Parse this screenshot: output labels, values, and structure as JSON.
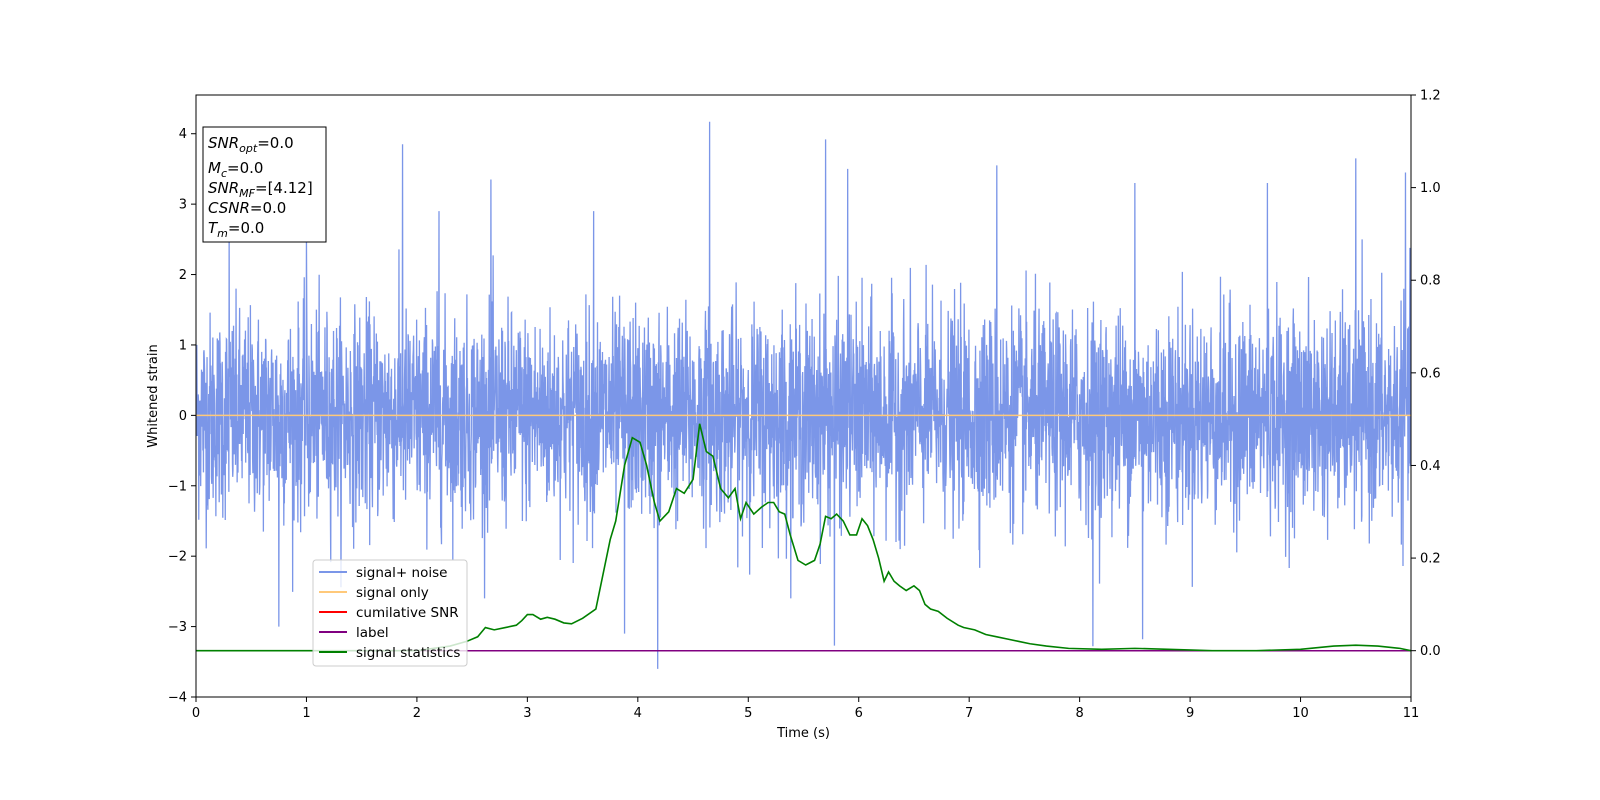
{
  "chart_data": {
    "type": "line",
    "xlabel": "Time (s)",
    "ylabel": "Whitened strain",
    "xlim": [
      0,
      11
    ],
    "ylim": [
      -4,
      4.55
    ],
    "y2lim": [
      -0.1,
      1.2
    ],
    "x_ticks": [
      "0",
      "1",
      "2",
      "3",
      "4",
      "5",
      "6",
      "7",
      "8",
      "9",
      "10",
      "11"
    ],
    "y_ticks": [
      "−4",
      "−3",
      "−2",
      "−1",
      "0",
      "1",
      "2",
      "3",
      "4"
    ],
    "y2_ticks": [
      "0.0",
      "0.2",
      "0.4",
      "0.6",
      "0.8",
      "1.0",
      "1.2"
    ],
    "info_box": {
      "snr_opt": {
        "name": "SNR",
        "sub": "opt",
        "value": "=0.0"
      },
      "mc": {
        "name": "M",
        "sub": "c",
        "value": "=0.0"
      },
      "snr_mf": {
        "name": "SNR",
        "sub": "MF",
        "value": "=[4.12]"
      },
      "csnr": {
        "name": "CSNR",
        "value": "=0.0"
      },
      "tm": {
        "name": "T",
        "sub": "m",
        "value": "=0.0"
      }
    },
    "legend": {
      "position": "lower-left",
      "entries": [
        {
          "label": "signal+ noise",
          "color": "#7b96e8"
        },
        {
          "label": "signal only",
          "color": "#ffc97a"
        },
        {
          "label": "cumilative SNR",
          "color": "#ff0000"
        },
        {
          "label": "label",
          "color": "#800080"
        },
        {
          "label": "signal statistics",
          "color": "#008000"
        }
      ]
    },
    "series": [
      {
        "name": "signal+ noise",
        "axis": "left",
        "color": "#7b96e8",
        "note": "dense whitened noise, centered ~0.0, range about -3.6 to 4.2",
        "spikes": [
          {
            "x": 0.3,
            "y": 2.6
          },
          {
            "x": 1.0,
            "y": 2.5
          },
          {
            "x": 1.87,
            "y": 3.85
          },
          {
            "x": 2.2,
            "y": 2.9
          },
          {
            "x": 2.67,
            "y": 3.35
          },
          {
            "x": 3.6,
            "y": 2.9
          },
          {
            "x": 4.65,
            "y": 4.17
          },
          {
            "x": 5.7,
            "y": 3.92
          },
          {
            "x": 5.9,
            "y": 3.5
          },
          {
            "x": 7.25,
            "y": 3.55
          },
          {
            "x": 8.5,
            "y": 3.3
          },
          {
            "x": 9.7,
            "y": 3.3
          },
          {
            "x": 10.5,
            "y": 3.65
          },
          {
            "x": 10.95,
            "y": 3.45
          },
          {
            "x": 4.18,
            "y": -3.6
          },
          {
            "x": 8.12,
            "y": -3.28
          },
          {
            "x": 8.57,
            "y": -3.18
          },
          {
            "x": 5.78,
            "y": -3.27
          },
          {
            "x": 0.75,
            "y": -3.0
          },
          {
            "x": 3.88,
            "y": -3.1
          }
        ]
      },
      {
        "name": "signal only",
        "axis": "left",
        "color": "#ffc97a",
        "x": [
          0,
          11
        ],
        "y": [
          0,
          0
        ]
      },
      {
        "name": "label",
        "axis": "right",
        "color": "#800080",
        "x": [
          0,
          11
        ],
        "y": [
          0,
          0
        ]
      },
      {
        "name": "signal statistics",
        "axis": "right",
        "color": "#008000",
        "x": [
          0,
          0.5,
          1.0,
          1.5,
          2.0,
          2.3,
          2.45,
          2.55,
          2.62,
          2.7,
          2.8,
          2.9,
          2.95,
          3.0,
          3.05,
          3.12,
          3.18,
          3.25,
          3.33,
          3.4,
          3.5,
          3.62,
          3.75,
          3.8,
          3.88,
          3.95,
          4.02,
          4.08,
          4.15,
          4.2,
          4.28,
          4.35,
          4.42,
          4.5,
          4.56,
          4.62,
          4.68,
          4.75,
          4.82,
          4.88,
          4.93,
          4.98,
          5.05,
          5.12,
          5.18,
          5.23,
          5.28,
          5.33,
          5.38,
          5.45,
          5.52,
          5.6,
          5.65,
          5.7,
          5.75,
          5.8,
          5.86,
          5.92,
          5.98,
          6.03,
          6.08,
          6.13,
          6.18,
          6.23,
          6.27,
          6.32,
          6.37,
          6.43,
          6.5,
          6.55,
          6.6,
          6.65,
          6.72,
          6.8,
          6.9,
          6.95,
          7.05,
          7.15,
          7.25,
          7.35,
          7.45,
          7.55,
          7.7,
          7.9,
          8.2,
          8.5,
          8.8,
          9.2,
          9.6,
          10.0,
          10.3,
          10.5,
          10.7,
          10.9,
          11.0
        ],
        "y": [
          0.0,
          0.0,
          0.0,
          0.0,
          0.0,
          0.01,
          0.02,
          0.03,
          0.05,
          0.045,
          0.05,
          0.055,
          0.065,
          0.078,
          0.078,
          0.068,
          0.072,
          0.068,
          0.06,
          0.058,
          0.07,
          0.09,
          0.24,
          0.28,
          0.4,
          0.46,
          0.45,
          0.4,
          0.32,
          0.28,
          0.3,
          0.35,
          0.34,
          0.37,
          0.49,
          0.43,
          0.42,
          0.35,
          0.33,
          0.35,
          0.285,
          0.32,
          0.295,
          0.31,
          0.32,
          0.32,
          0.3,
          0.295,
          0.25,
          0.195,
          0.185,
          0.195,
          0.23,
          0.29,
          0.285,
          0.295,
          0.28,
          0.25,
          0.25,
          0.285,
          0.27,
          0.24,
          0.2,
          0.15,
          0.17,
          0.15,
          0.14,
          0.13,
          0.14,
          0.13,
          0.1,
          0.09,
          0.085,
          0.07,
          0.055,
          0.05,
          0.045,
          0.035,
          0.03,
          0.025,
          0.02,
          0.015,
          0.01,
          0.005,
          0.003,
          0.005,
          0.003,
          0.0,
          0.0,
          0.003,
          0.01,
          0.012,
          0.01,
          0.005,
          0.0
        ]
      }
    ]
  },
  "colors": {
    "signal_noise": "#7b96e8",
    "signal_only": "#ffc97a",
    "cum_snr": "#ff0000",
    "label": "#800080",
    "stats": "#008000"
  }
}
